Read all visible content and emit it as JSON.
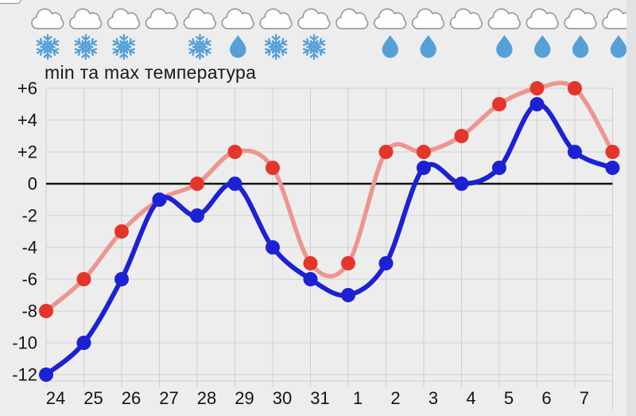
{
  "chart_data": {
    "type": "line",
    "title": "min та max температура",
    "categories": [
      "24",
      "25",
      "26",
      "27",
      "28",
      "29",
      "30",
      "31",
      "1",
      "2",
      "3",
      "4",
      "5",
      "6",
      "7",
      ""
    ],
    "series": [
      {
        "name": "max",
        "values": [
          -8,
          -6,
          -3,
          -1,
          0,
          2,
          1,
          -5,
          -5,
          2,
          2,
          3,
          5,
          6,
          6,
          2
        ],
        "dot_color": "#e5352b",
        "line_color": "#ee958e"
      },
      {
        "name": "min",
        "values": [
          -12,
          -10,
          -6,
          -1,
          -2,
          0,
          -4,
          -6,
          -7,
          -5,
          1,
          0,
          1,
          5,
          2,
          1
        ],
        "dot_color": "#1c22d3",
        "line_color": "#1c22d3"
      }
    ],
    "yticks": [
      6,
      4,
      2,
      0,
      -2,
      -4,
      -6,
      -8,
      -10,
      -12
    ],
    "ytick_labels": [
      "+6",
      "+4",
      "+2",
      "0",
      "-2",
      "-4",
      "-6",
      "-8",
      "-10",
      "-12"
    ],
    "ylim": [
      -12.4,
      6
    ],
    "grid": true,
    "legend": "none",
    "zero_line": true
  },
  "weather_icons": {
    "sky": [
      "cloud",
      "cloud",
      "cloud",
      "cloud",
      "cloud",
      "cloud",
      "cloud",
      "cloud",
      "cloud",
      "cloud",
      "cloud",
      "cloud",
      "cloud",
      "cloud",
      "cloud",
      "cloud"
    ],
    "precipitation": [
      "snow",
      "snow",
      "snow",
      "none",
      "snow",
      "rain",
      "snow",
      "snow",
      "none",
      "rain",
      "rain",
      "none",
      "rain",
      "rain",
      "rain",
      "rain"
    ]
  },
  "colors": {
    "background": "#ededee",
    "grid": "#cfcfd0",
    "zero_line": "#141414",
    "max_dot": "#e5352b",
    "max_line": "#ee958e",
    "min_line": "#1c22d3",
    "icon_blue": "#55a0d9",
    "cloud_fill": "#fefefe",
    "cloud_outline": "#9b9b9b",
    "right_margin": "#e3e3e4"
  }
}
